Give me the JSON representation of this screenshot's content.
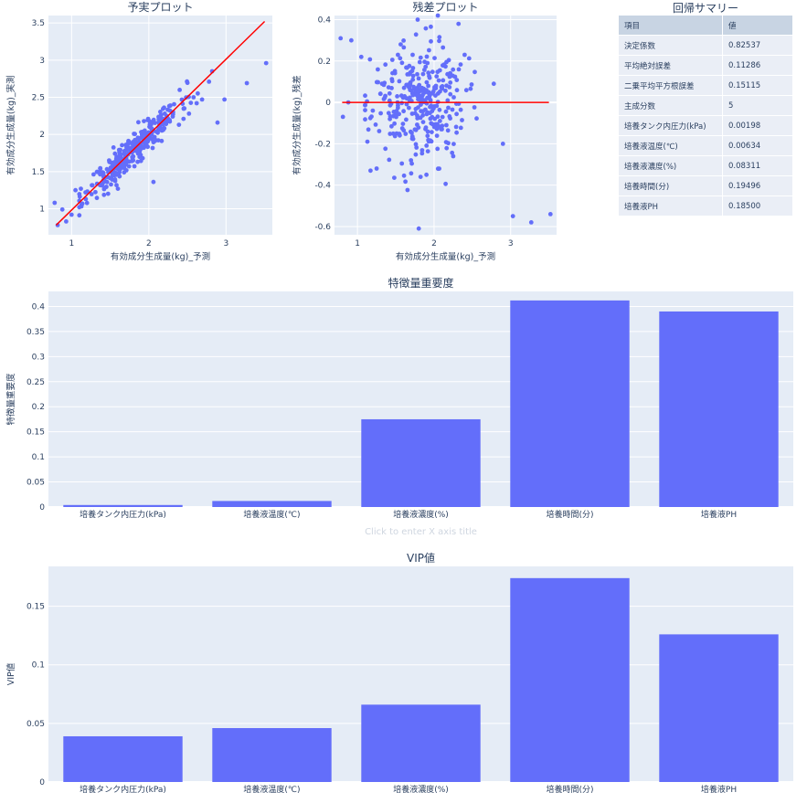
{
  "chart_data": [
    {
      "type": "scatter",
      "title": "予実プロット",
      "xlabel": "有効成分生成量(kg)_予測",
      "ylabel": "有効成分生成量(kg)_実測",
      "xlim": [
        0.7,
        3.6
      ],
      "ylim": [
        0.65,
        3.6
      ],
      "xticks": [
        1,
        2,
        3
      ],
      "yticks": [
        1,
        1.5,
        2,
        2.5,
        3,
        3.5
      ],
      "marker_color": "#636efa",
      "n_points": 320,
      "point_seed": 11,
      "line_color": "#ff0000",
      "line": {
        "x": [
          0.8,
          3.5
        ],
        "y": [
          0.78,
          3.52
        ]
      },
      "points": {
        "x": [
          3.52,
          3.27,
          2.98,
          2.89,
          2.82,
          2.78,
          2.69,
          2.62,
          2.58,
          2.52,
          2.45,
          2.4,
          2.39,
          2.31,
          0.78,
          0.82,
          0.88,
          0.93,
          1.0,
          1.05,
          1.12,
          1.18,
          2.06,
          1.92
        ],
        "y": [
          2.96,
          2.69,
          2.47,
          2.16,
          2.85,
          2.71,
          2.47,
          2.42,
          2.5,
          2.28,
          2.21,
          2.6,
          2.13,
          2.24,
          1.08,
          0.78,
          0.99,
          0.83,
          0.92,
          1.25,
          1.27,
          1.22,
          1.36,
          1.68
        ]
      }
    },
    {
      "type": "scatter",
      "title": "残差プロット",
      "xlabel": "有効成分生成量(kg)_予測",
      "ylabel": "有効成分生成量(kg)_残差",
      "xlim": [
        0.7,
        3.6
      ],
      "ylim": [
        -0.64,
        0.42
      ],
      "xticks": [
        1,
        2,
        3
      ],
      "yticks": [
        -0.6,
        -0.4,
        -0.2,
        0,
        0.2,
        0.4
      ],
      "marker_color": "#636efa",
      "n_points": 320,
      "point_seed": 23,
      "line_color": "#ff0000",
      "line": {
        "x": [
          0.8,
          3.5
        ],
        "y": [
          0,
          0
        ]
      },
      "points": {
        "x": [
          3.52,
          3.27,
          3.03,
          2.9,
          2.78,
          0.78,
          0.81,
          0.88,
          0.92,
          1.05,
          1.17,
          1.25,
          1.8,
          2.05,
          1.32,
          1.9,
          2.4,
          2.32,
          1.72,
          2.25
        ],
        "y": [
          -0.54,
          -0.58,
          -0.55,
          -0.2,
          0.09,
          0.31,
          -0.07,
          0.0,
          0.3,
          0.22,
          -0.33,
          -0.32,
          -0.61,
          0.42,
          0.09,
          -0.35,
          0.23,
          0.38,
          0.23,
          -0.26
        ]
      }
    },
    {
      "type": "bar",
      "title": "特徴量重要度",
      "xlabel": "Click to enter X axis title",
      "ylabel": "特徴量重要度",
      "categories": [
        "培養タンク内圧力(kPa)",
        "培養液温度(℃)",
        "培養液濃度(%)",
        "培養時間(分)",
        "培養液PH"
      ],
      "values": [
        0.004,
        0.012,
        0.175,
        0.412,
        0.39
      ],
      "ylim": [
        0,
        0.43
      ],
      "yticks": [
        0,
        0.05,
        0.1,
        0.15,
        0.2,
        0.25,
        0.3,
        0.35,
        0.4
      ],
      "color": "#636efa"
    },
    {
      "type": "bar",
      "title": "VIP値",
      "xlabel": "",
      "ylabel": "VIP値",
      "categories": [
        "培養タンク内圧力(kPa)",
        "培養液温度(℃)",
        "培養液濃度(%)",
        "培養時間(分)",
        "培養液PH"
      ],
      "values": [
        0.039,
        0.046,
        0.066,
        0.174,
        0.126
      ],
      "ylim": [
        0,
        0.184
      ],
      "yticks": [
        0,
        0.05,
        0.1,
        0.15
      ],
      "color": "#636efa"
    }
  ],
  "summary": {
    "title": "回帰サマリー",
    "headers": [
      "項目",
      "値"
    ],
    "rows": [
      [
        "決定係数",
        "0.82537"
      ],
      [
        "平均絶対誤差",
        "0.11286"
      ],
      [
        "二乗平均平方根誤差",
        "0.15115"
      ],
      [
        "主成分数",
        "5"
      ],
      [
        "培養タンク内圧力(kPa)",
        "0.00198"
      ],
      [
        "培養液温度(℃)",
        "0.00634"
      ],
      [
        "培養液濃度(%)",
        "0.08311"
      ],
      [
        "培養時間(分)",
        "0.19496"
      ],
      [
        "培養液PH",
        "0.18500"
      ]
    ]
  },
  "colors": {
    "plot_bg": "#e5ecf6",
    "grid": "#ffffff",
    "text": "#2a3f5f"
  }
}
